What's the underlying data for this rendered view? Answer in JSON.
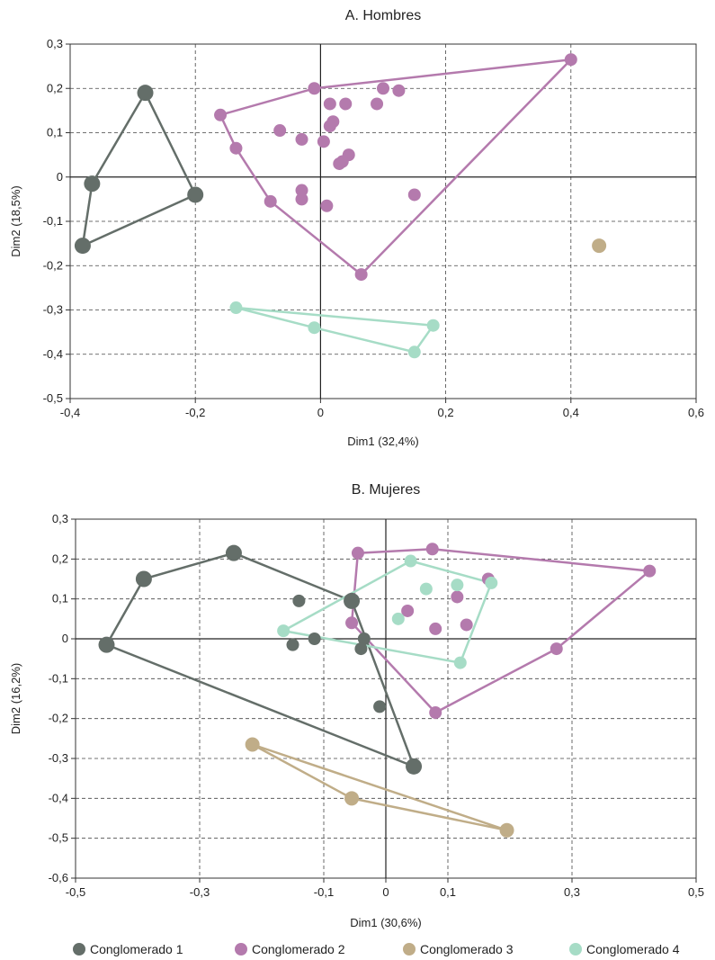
{
  "colors": {
    "c1": "#646e69",
    "c2": "#b47aad",
    "c3": "#c0ad88",
    "c4": "#a6dcc6"
  },
  "legend": [
    {
      "label": "Conglomerado 1",
      "color": "#646e69"
    },
    {
      "label": "Conglomerado 2",
      "color": "#b47aad"
    },
    {
      "label": "Conglomerado 3",
      "color": "#c0ad88"
    },
    {
      "label": "Conglomerado 4",
      "color": "#a6dcc6"
    }
  ],
  "chart_data": [
    {
      "type": "scatter",
      "title": "A. Hombres",
      "xlabel": "Dim1 (32,4%)",
      "ylabel": "Dim2 (18,5%)",
      "xlim": [
        -0.4,
        0.6
      ],
      "ylim": [
        -0.5,
        0.3
      ],
      "xticks": [
        -0.4,
        -0.2,
        0,
        0.2,
        0.4,
        0.6
      ],
      "xtick_labels": [
        "-0,4",
        "-0,2",
        "0",
        "0,2",
        "0,4",
        "0,6"
      ],
      "yticks": [
        0.3,
        0.2,
        0.1,
        0,
        -0.1,
        -0.2,
        -0.3,
        -0.4,
        -0.5
      ],
      "ytick_labels": [
        "0,3",
        "0,2",
        "0,1",
        "0",
        "-0,1",
        "-0,2",
        "-0,3",
        "-0,4",
        "-0,5"
      ],
      "grid": true,
      "series": [
        {
          "cluster": 1,
          "hull": [
            [
              -0.28,
              0.19
            ],
            [
              -0.365,
              -0.015
            ],
            [
              -0.38,
              -0.155
            ],
            [
              -0.2,
              -0.04
            ]
          ],
          "points": [
            [
              -0.28,
              0.19
            ],
            [
              -0.365,
              -0.015
            ],
            [
              -0.38,
              -0.155
            ],
            [
              -0.2,
              -0.04
            ]
          ]
        },
        {
          "cluster": 2,
          "hull": [
            [
              -0.01,
              0.2
            ],
            [
              0.4,
              0.265
            ],
            [
              0.065,
              -0.22
            ],
            [
              -0.08,
              -0.055
            ],
            [
              -0.135,
              0.065
            ],
            [
              -0.16,
              0.14
            ]
          ],
          "points": [
            [
              -0.16,
              0.14
            ],
            [
              -0.01,
              0.2
            ],
            [
              0.4,
              0.265
            ],
            [
              0.1,
              0.2
            ],
            [
              0.125,
              0.195
            ],
            [
              0.015,
              0.165
            ],
            [
              0.04,
              0.165
            ],
            [
              0.09,
              0.165
            ],
            [
              0.02,
              0.125
            ],
            [
              0.015,
              0.115
            ],
            [
              -0.065,
              0.105
            ],
            [
              -0.03,
              0.085
            ],
            [
              0.005,
              0.08
            ],
            [
              -0.135,
              0.065
            ],
            [
              0.045,
              0.05
            ],
            [
              0.035,
              0.035
            ],
            [
              0.03,
              0.03
            ],
            [
              -0.03,
              -0.03
            ],
            [
              -0.03,
              -0.05
            ],
            [
              0.15,
              -0.04
            ],
            [
              0.01,
              -0.065
            ],
            [
              -0.08,
              -0.055
            ],
            [
              0.065,
              -0.22
            ]
          ]
        },
        {
          "cluster": 3,
          "hull": [],
          "points": [
            [
              0.445,
              -0.155
            ]
          ]
        },
        {
          "cluster": 4,
          "hull": [
            [
              -0.135,
              -0.295
            ],
            [
              0.18,
              -0.335
            ],
            [
              0.15,
              -0.395
            ],
            [
              -0.01,
              -0.34
            ]
          ],
          "points": [
            [
              -0.135,
              -0.295
            ],
            [
              0.18,
              -0.335
            ],
            [
              0.15,
              -0.395
            ],
            [
              -0.01,
              -0.34
            ]
          ]
        }
      ]
    },
    {
      "type": "scatter",
      "title": "B. Mujeres",
      "xlabel": "Dim1 (30,6%)",
      "ylabel": "Dim2 (16,2%)",
      "xlim": [
        -0.5,
        0.5
      ],
      "ylim": [
        -0.6,
        0.3
      ],
      "xticks": [
        -0.5,
        -0.3,
        -0.1,
        0,
        0.1,
        0.3,
        0.5
      ],
      "xtick_labels": [
        "-0,5",
        "-0,3",
        "-0,1",
        "0",
        "0,1",
        "0,3",
        "0,5"
      ],
      "yticks": [
        0.3,
        0.2,
        0.1,
        0,
        -0.1,
        -0.2,
        -0.3,
        -0.4,
        -0.5,
        -0.6
      ],
      "ytick_labels": [
        "0,3",
        "0,2",
        "0,1",
        "0",
        "-0,1",
        "-0,2",
        "-0,3",
        "-0,4",
        "-0,5",
        "-0,6"
      ],
      "grid": true,
      "series": [
        {
          "cluster": 1,
          "hull": [
            [
              -0.245,
              0.215
            ],
            [
              -0.055,
              0.095
            ],
            [
              0.045,
              -0.32
            ],
            [
              -0.45,
              -0.015
            ],
            [
              -0.39,
              0.15
            ]
          ],
          "points": [
            [
              -0.245,
              0.215
            ],
            [
              -0.39,
              0.15
            ],
            [
              -0.45,
              -0.015
            ],
            [
              -0.055,
              0.095
            ],
            [
              -0.14,
              0.095
            ],
            [
              -0.035,
              0.0
            ],
            [
              -0.115,
              0.0
            ],
            [
              -0.15,
              -0.015
            ],
            [
              -0.04,
              -0.025
            ],
            [
              -0.01,
              -0.17
            ],
            [
              0.045,
              -0.32
            ]
          ]
        },
        {
          "cluster": 2,
          "hull": [
            [
              -0.045,
              0.215
            ],
            [
              0.075,
              0.225
            ],
            [
              0.425,
              0.17
            ],
            [
              0.275,
              -0.025
            ],
            [
              0.08,
              -0.185
            ],
            [
              -0.055,
              0.04
            ]
          ],
          "points": [
            [
              -0.045,
              0.215
            ],
            [
              0.075,
              0.225
            ],
            [
              0.425,
              0.17
            ],
            [
              0.165,
              0.15
            ],
            [
              0.115,
              0.105
            ],
            [
              0.035,
              0.07
            ],
            [
              0.13,
              0.035
            ],
            [
              0.08,
              0.025
            ],
            [
              -0.055,
              0.04
            ],
            [
              0.275,
              -0.025
            ],
            [
              0.08,
              -0.185
            ]
          ]
        },
        {
          "cluster": 3,
          "hull": [
            [
              -0.215,
              -0.265
            ],
            [
              -0.055,
              -0.4
            ],
            [
              0.195,
              -0.48
            ]
          ],
          "points": [
            [
              -0.215,
              -0.265
            ],
            [
              -0.055,
              -0.4
            ],
            [
              0.195,
              -0.48
            ]
          ]
        },
        {
          "cluster": 4,
          "hull": [
            [
              0.04,
              0.195
            ],
            [
              0.17,
              0.14
            ],
            [
              0.12,
              -0.06
            ],
            [
              -0.165,
              0.02
            ]
          ],
          "points": [
            [
              0.04,
              0.195
            ],
            [
              0.17,
              0.14
            ],
            [
              0.115,
              0.135
            ],
            [
              0.065,
              0.125
            ],
            [
              0.02,
              0.05
            ],
            [
              -0.165,
              0.02
            ],
            [
              0.12,
              -0.06
            ]
          ]
        }
      ]
    }
  ]
}
